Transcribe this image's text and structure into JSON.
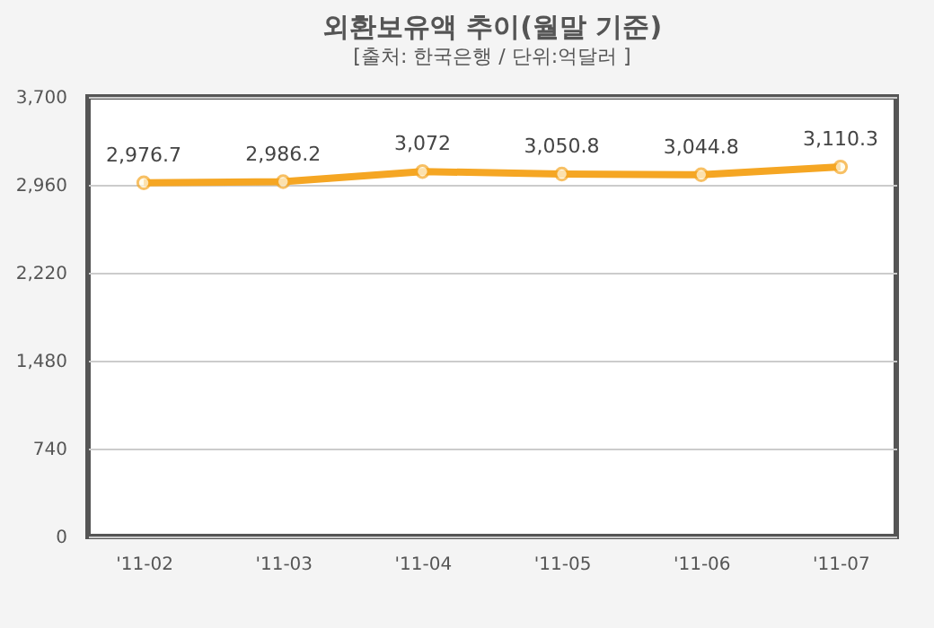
{
  "chart_data": {
    "type": "line",
    "title": "외환보유액 추이(월말 기준)",
    "subtitle": "[출처: 한국은행 / 단위:억달러 ]",
    "categories": [
      "'11-02",
      "'11-03",
      "'11-04",
      "'11-05",
      "'11-06",
      "'11-07"
    ],
    "series": [
      {
        "color": "#f5a623",
        "values": [
          2976.7,
          2986.2,
          3072,
          3050.8,
          3044.8,
          3110.3
        ]
      }
    ],
    "value_labels": [
      "2,976.7",
      "2,986.2",
      "3,072",
      "3,050.8",
      "3,044.8",
      "3,110.3"
    ],
    "ylim": [
      0,
      3700
    ],
    "yticks": [
      0,
      {
        "value": 740,
        "label": "740"
      },
      {
        "value": 1480,
        "label": "1,480"
      },
      {
        "value": 2220,
        "label": "2,220"
      },
      {
        "value": 2960,
        "label": "2,960"
      },
      {
        "value": 3700,
        "label": "3,700"
      }
    ],
    "grid": "y",
    "marker": "circle"
  }
}
